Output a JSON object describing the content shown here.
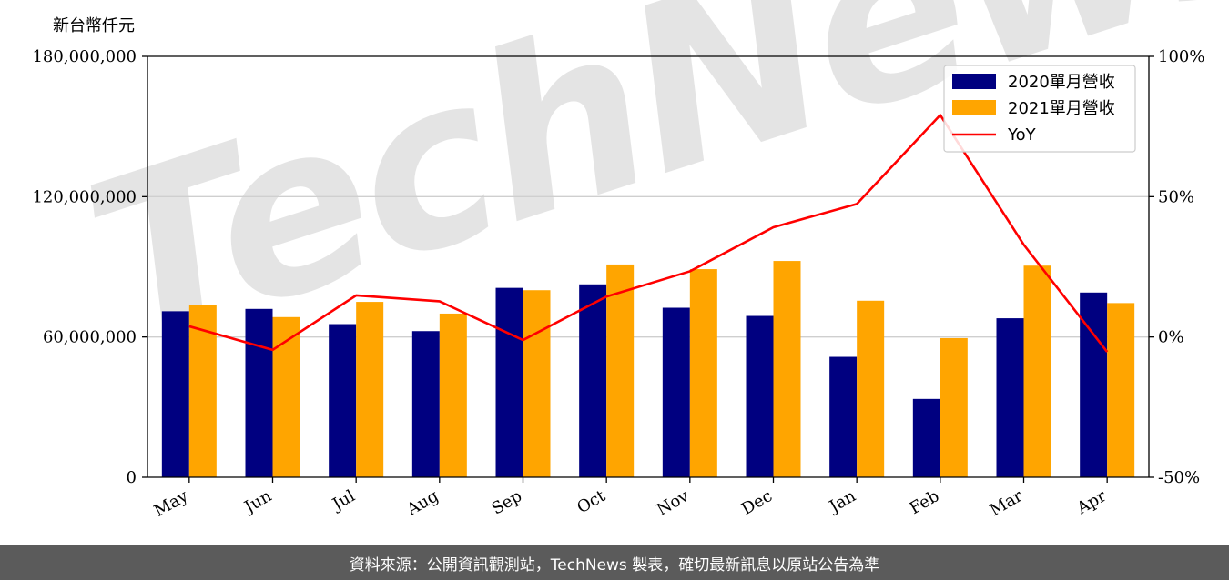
{
  "chart_data": {
    "type": "bar",
    "unit_label": "新台幣仟元",
    "categories": [
      "May",
      "Jun",
      "Jul",
      "Aug",
      "Sep",
      "Oct",
      "Nov",
      "Dec",
      "Jan",
      "Feb",
      "Mar",
      "Apr"
    ],
    "series": [
      {
        "name": "2020單月營收",
        "type": "bar",
        "axis": "left",
        "color": "#000080",
        "values": [
          71000000,
          72000000,
          65500000,
          62500000,
          81000000,
          82500000,
          72500000,
          69000000,
          51500000,
          33500000,
          68000000,
          79000000
        ]
      },
      {
        "name": "2021單月營收",
        "type": "bar",
        "axis": "left",
        "color": "#ffa500",
        "values": [
          73500000,
          68500000,
          75000000,
          70000000,
          80000000,
          91000000,
          89000000,
          92500000,
          75500000,
          59500000,
          90500000,
          74500000
        ]
      },
      {
        "name": "YoY",
        "type": "line",
        "axis": "right",
        "color": "#ff0000",
        "values": [
          3.8,
          -4.6,
          14.8,
          12.7,
          -1.1,
          14.4,
          23.4,
          39.1,
          47.4,
          79.1,
          32.9,
          -5.3
        ]
      }
    ],
    "y_left": {
      "min": 0,
      "max": 180000000,
      "ticks": [
        0,
        60000000,
        120000000,
        180000000
      ],
      "tick_labels": [
        "0",
        "60,000,000",
        "120,000,000",
        "180,000,000"
      ]
    },
    "y_right": {
      "min": -50,
      "max": 100,
      "ticks": [
        -50,
        0,
        50,
        100
      ],
      "tick_labels": [
        "-50%",
        "0%",
        "50%",
        "100%"
      ]
    },
    "grid": "horizontal",
    "legend_position": "top-right"
  },
  "watermark": "TechNews",
  "footer": {
    "text": "資料來源：公開資訊觀測站，TechNews 製表，確切最新訊息以原站公告為準"
  }
}
